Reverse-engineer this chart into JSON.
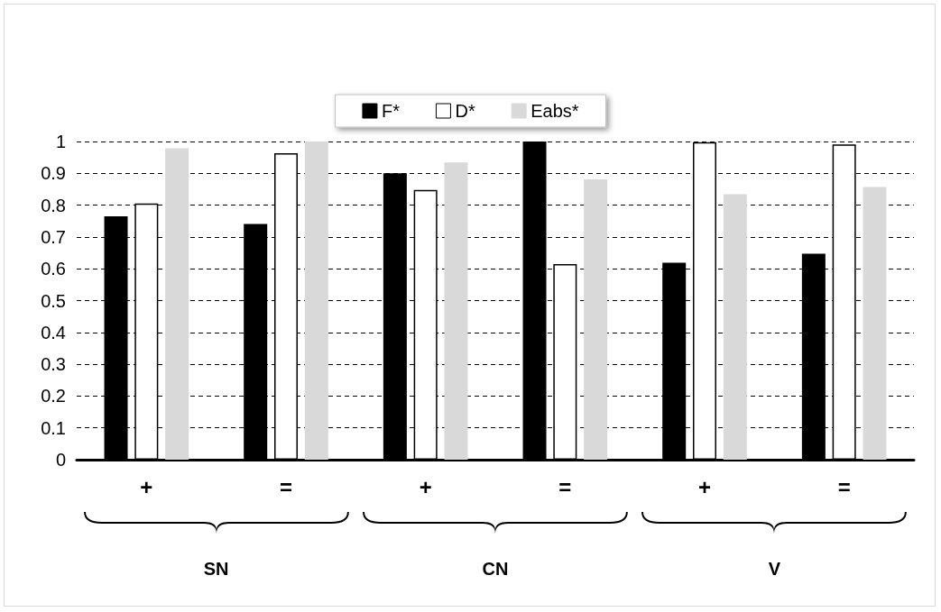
{
  "chart_data": {
    "type": "bar",
    "categories": [
      "+",
      "=",
      "+",
      "=",
      "+",
      "="
    ],
    "series": [
      {
        "name": "F*",
        "color": "#000000",
        "values": [
          0.765,
          0.741,
          0.9,
          1.0,
          0.619,
          0.647
        ]
      },
      {
        "name": "D*",
        "color": "#ffffff",
        "values": [
          0.805,
          0.963,
          0.848,
          0.615,
          0.998,
          0.991
        ]
      },
      {
        "name": "Eabs*",
        "color": "#d9d9d9",
        "values": [
          0.979,
          1.0,
          0.934,
          0.881,
          0.834,
          0.857
        ]
      }
    ],
    "ylim": [
      0,
      1
    ],
    "yticks": [
      0,
      0.1,
      0.2,
      0.3,
      0.4,
      0.5,
      0.6,
      0.7,
      0.8,
      0.9,
      1
    ],
    "grid": "y",
    "legend": "top",
    "annotations": [
      "SN",
      "CN",
      "V"
    ]
  }
}
